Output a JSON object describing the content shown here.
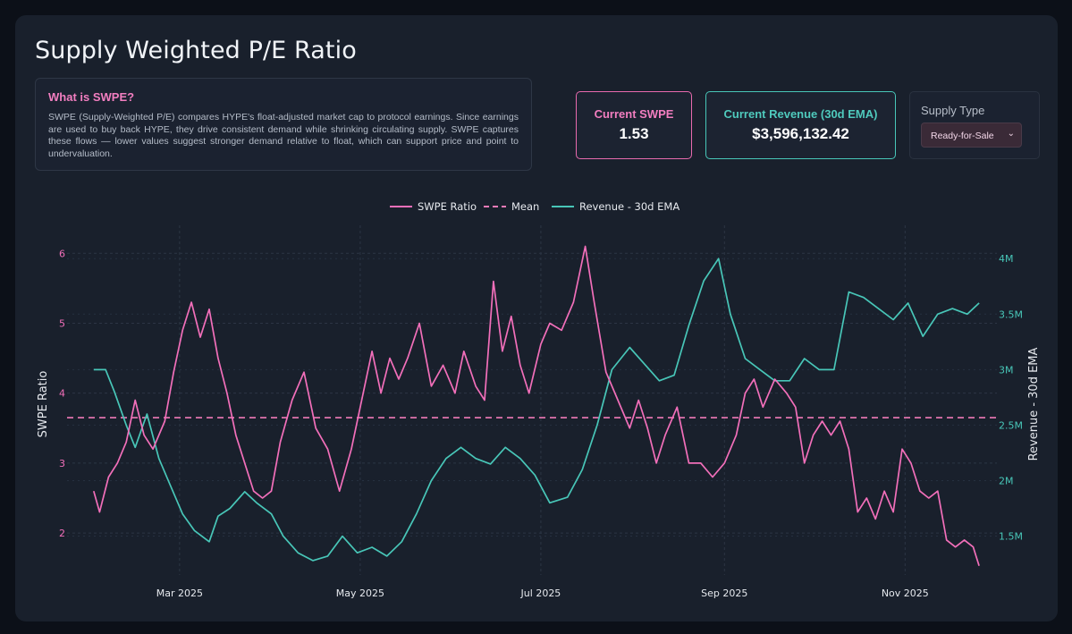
{
  "page": {
    "title": "Supply Weighted P/E Ratio"
  },
  "info": {
    "heading": "What is SWPE?",
    "body": "SWPE (Supply-Weighted P/E) compares HYPE's float-adjusted market cap to protocol earnings. Since earnings are used to buy back HYPE, they drive consistent demand while shrinking circulating supply. SWPE captures these flows — lower values suggest stronger demand relative to float, which can support price and point to undervaluation."
  },
  "cards": {
    "swpe": {
      "label": "Current SWPE",
      "value": "1.53"
    },
    "revenue": {
      "label": "Current Revenue (30d EMA)",
      "value": "$3,596,132.42"
    }
  },
  "supply": {
    "label": "Supply Type",
    "selected": "Ready-for-Sale",
    "caret_icon": "chevron-down-icon"
  },
  "colors": {
    "swpe": "#f26fba",
    "revenue": "#48c6b8",
    "mean": "#f07ab8"
  },
  "chart_data": {
    "type": "line",
    "legend": {
      "placement": "top-center",
      "items": [
        "SWPE Ratio",
        "Mean",
        "Revenue - 30d EMA"
      ]
    },
    "xlabel": "",
    "ylabel": "SWPE Ratio",
    "y2label": "Revenue - 30d EMA",
    "x_ticks": [
      {
        "date": "2025-03-01",
        "label": "Mar 2025"
      },
      {
        "date": "2025-05-01",
        "label": "May 2025"
      },
      {
        "date": "2025-07-01",
        "label": "Jul 2025"
      },
      {
        "date": "2025-09-01",
        "label": "Sep 2025"
      },
      {
        "date": "2025-11-01",
        "label": "Nov 2025"
      }
    ],
    "xlim": [
      "2025-01-22",
      "2025-12-02"
    ],
    "ylim": [
      1.4,
      6.4
    ],
    "y_ticks": [
      2,
      3,
      4,
      5,
      6
    ],
    "y2lim": [
      1150000,
      4300000
    ],
    "y2_ticks": [
      {
        "value": 1500000,
        "label": "1.5M"
      },
      {
        "value": 2000000,
        "label": "2M"
      },
      {
        "value": 2500000,
        "label": "2.5M"
      },
      {
        "value": 3000000,
        "label": "3M"
      },
      {
        "value": 3500000,
        "label": "3.5M"
      },
      {
        "value": 4000000,
        "label": "4M"
      }
    ],
    "grid": true,
    "mean": 3.65,
    "series": [
      {
        "name": "SWPE Ratio",
        "axis": "left",
        "points": [
          [
            "2025-01-31",
            2.6
          ],
          [
            "2025-02-02",
            2.3
          ],
          [
            "2025-02-05",
            2.8
          ],
          [
            "2025-02-08",
            3.0
          ],
          [
            "2025-02-11",
            3.3
          ],
          [
            "2025-02-14",
            3.9
          ],
          [
            "2025-02-17",
            3.4
          ],
          [
            "2025-02-20",
            3.2
          ],
          [
            "2025-02-24",
            3.6
          ],
          [
            "2025-02-27",
            4.3
          ],
          [
            "2025-03-02",
            4.9
          ],
          [
            "2025-03-05",
            5.3
          ],
          [
            "2025-03-08",
            4.8
          ],
          [
            "2025-03-11",
            5.2
          ],
          [
            "2025-03-14",
            4.5
          ],
          [
            "2025-03-17",
            4.0
          ],
          [
            "2025-03-20",
            3.4
          ],
          [
            "2025-03-23",
            3.0
          ],
          [
            "2025-03-26",
            2.6
          ],
          [
            "2025-03-29",
            2.5
          ],
          [
            "2025-04-01",
            2.6
          ],
          [
            "2025-04-04",
            3.3
          ],
          [
            "2025-04-08",
            3.9
          ],
          [
            "2025-04-12",
            4.3
          ],
          [
            "2025-04-16",
            3.5
          ],
          [
            "2025-04-20",
            3.2
          ],
          [
            "2025-04-24",
            2.6
          ],
          [
            "2025-04-28",
            3.2
          ],
          [
            "2025-05-02",
            4.0
          ],
          [
            "2025-05-05",
            4.6
          ],
          [
            "2025-05-08",
            4.0
          ],
          [
            "2025-05-11",
            4.5
          ],
          [
            "2025-05-14",
            4.2
          ],
          [
            "2025-05-17",
            4.5
          ],
          [
            "2025-05-21",
            5.0
          ],
          [
            "2025-05-25",
            4.1
          ],
          [
            "2025-05-29",
            4.4
          ],
          [
            "2025-06-02",
            4.0
          ],
          [
            "2025-06-05",
            4.6
          ],
          [
            "2025-06-09",
            4.1
          ],
          [
            "2025-06-12",
            3.9
          ],
          [
            "2025-06-15",
            5.6
          ],
          [
            "2025-06-18",
            4.6
          ],
          [
            "2025-06-21",
            5.1
          ],
          [
            "2025-06-24",
            4.4
          ],
          [
            "2025-06-27",
            4.0
          ],
          [
            "2025-07-01",
            4.7
          ],
          [
            "2025-07-04",
            5.0
          ],
          [
            "2025-07-08",
            4.9
          ],
          [
            "2025-07-12",
            5.3
          ],
          [
            "2025-07-16",
            6.1
          ],
          [
            "2025-07-19",
            5.3
          ],
          [
            "2025-07-23",
            4.3
          ],
          [
            "2025-07-27",
            3.9
          ],
          [
            "2025-07-31",
            3.5
          ],
          [
            "2025-08-03",
            3.9
          ],
          [
            "2025-08-06",
            3.5
          ],
          [
            "2025-08-09",
            3.0
          ],
          [
            "2025-08-12",
            3.4
          ],
          [
            "2025-08-16",
            3.8
          ],
          [
            "2025-08-20",
            3.0
          ],
          [
            "2025-08-24",
            3.0
          ],
          [
            "2025-08-28",
            2.8
          ],
          [
            "2025-09-01",
            3.0
          ],
          [
            "2025-09-05",
            3.4
          ],
          [
            "2025-09-08",
            4.0
          ],
          [
            "2025-09-11",
            4.2
          ],
          [
            "2025-09-14",
            3.8
          ],
          [
            "2025-09-18",
            4.2
          ],
          [
            "2025-09-22",
            4.0
          ],
          [
            "2025-09-25",
            3.8
          ],
          [
            "2025-09-28",
            3.0
          ],
          [
            "2025-10-01",
            3.4
          ],
          [
            "2025-10-04",
            3.6
          ],
          [
            "2025-10-07",
            3.4
          ],
          [
            "2025-10-10",
            3.6
          ],
          [
            "2025-10-13",
            3.2
          ],
          [
            "2025-10-16",
            2.3
          ],
          [
            "2025-10-19",
            2.5
          ],
          [
            "2025-10-22",
            2.2
          ],
          [
            "2025-10-25",
            2.6
          ],
          [
            "2025-10-28",
            2.3
          ],
          [
            "2025-10-31",
            3.2
          ],
          [
            "2025-11-03",
            3.0
          ],
          [
            "2025-11-06",
            2.6
          ],
          [
            "2025-11-09",
            2.5
          ],
          [
            "2025-11-12",
            2.6
          ],
          [
            "2025-11-15",
            1.9
          ],
          [
            "2025-11-18",
            1.8
          ],
          [
            "2025-11-21",
            1.9
          ],
          [
            "2025-11-24",
            1.8
          ],
          [
            "2025-11-26",
            1.53
          ]
        ]
      },
      {
        "name": "Revenue - 30d EMA",
        "axis": "right",
        "points": [
          [
            "2025-01-31",
            3000000
          ],
          [
            "2025-02-02",
            3000000
          ],
          [
            "2025-02-04",
            3000000
          ],
          [
            "2025-02-07",
            2800000
          ],
          [
            "2025-02-11",
            2500000
          ],
          [
            "2025-02-14",
            2300000
          ],
          [
            "2025-02-18",
            2600000
          ],
          [
            "2025-02-22",
            2200000
          ],
          [
            "2025-02-26",
            1950000
          ],
          [
            "2025-03-02",
            1700000
          ],
          [
            "2025-03-06",
            1550000
          ],
          [
            "2025-03-11",
            1450000
          ],
          [
            "2025-03-14",
            1680000
          ],
          [
            "2025-03-18",
            1750000
          ],
          [
            "2025-03-23",
            1900000
          ],
          [
            "2025-03-27",
            1800000
          ],
          [
            "2025-04-01",
            1700000
          ],
          [
            "2025-04-05",
            1500000
          ],
          [
            "2025-04-10",
            1350000
          ],
          [
            "2025-04-15",
            1280000
          ],
          [
            "2025-04-20",
            1320000
          ],
          [
            "2025-04-25",
            1500000
          ],
          [
            "2025-04-30",
            1350000
          ],
          [
            "2025-05-05",
            1400000
          ],
          [
            "2025-05-10",
            1320000
          ],
          [
            "2025-05-15",
            1450000
          ],
          [
            "2025-05-20",
            1700000
          ],
          [
            "2025-05-25",
            2000000
          ],
          [
            "2025-05-30",
            2200000
          ],
          [
            "2025-06-04",
            2300000
          ],
          [
            "2025-06-09",
            2200000
          ],
          [
            "2025-06-14",
            2150000
          ],
          [
            "2025-06-19",
            2300000
          ],
          [
            "2025-06-24",
            2200000
          ],
          [
            "2025-06-29",
            2050000
          ],
          [
            "2025-07-04",
            1800000
          ],
          [
            "2025-07-10",
            1850000
          ],
          [
            "2025-07-15",
            2100000
          ],
          [
            "2025-07-20",
            2500000
          ],
          [
            "2025-07-25",
            3000000
          ],
          [
            "2025-07-31",
            3200000
          ],
          [
            "2025-08-05",
            3050000
          ],
          [
            "2025-08-10",
            2900000
          ],
          [
            "2025-08-15",
            2950000
          ],
          [
            "2025-08-20",
            3400000
          ],
          [
            "2025-08-25",
            3800000
          ],
          [
            "2025-08-30",
            4000000
          ],
          [
            "2025-09-03",
            3500000
          ],
          [
            "2025-09-08",
            3100000
          ],
          [
            "2025-09-13",
            3000000
          ],
          [
            "2025-09-18",
            2900000
          ],
          [
            "2025-09-23",
            2900000
          ],
          [
            "2025-09-28",
            3100000
          ],
          [
            "2025-10-03",
            3000000
          ],
          [
            "2025-10-08",
            3000000
          ],
          [
            "2025-10-13",
            3700000
          ],
          [
            "2025-10-18",
            3650000
          ],
          [
            "2025-10-23",
            3550000
          ],
          [
            "2025-10-28",
            3450000
          ],
          [
            "2025-11-02",
            3600000
          ],
          [
            "2025-11-07",
            3300000
          ],
          [
            "2025-11-12",
            3500000
          ],
          [
            "2025-11-17",
            3550000
          ],
          [
            "2025-11-22",
            3500000
          ],
          [
            "2025-11-26",
            3600000
          ]
        ]
      }
    ]
  }
}
